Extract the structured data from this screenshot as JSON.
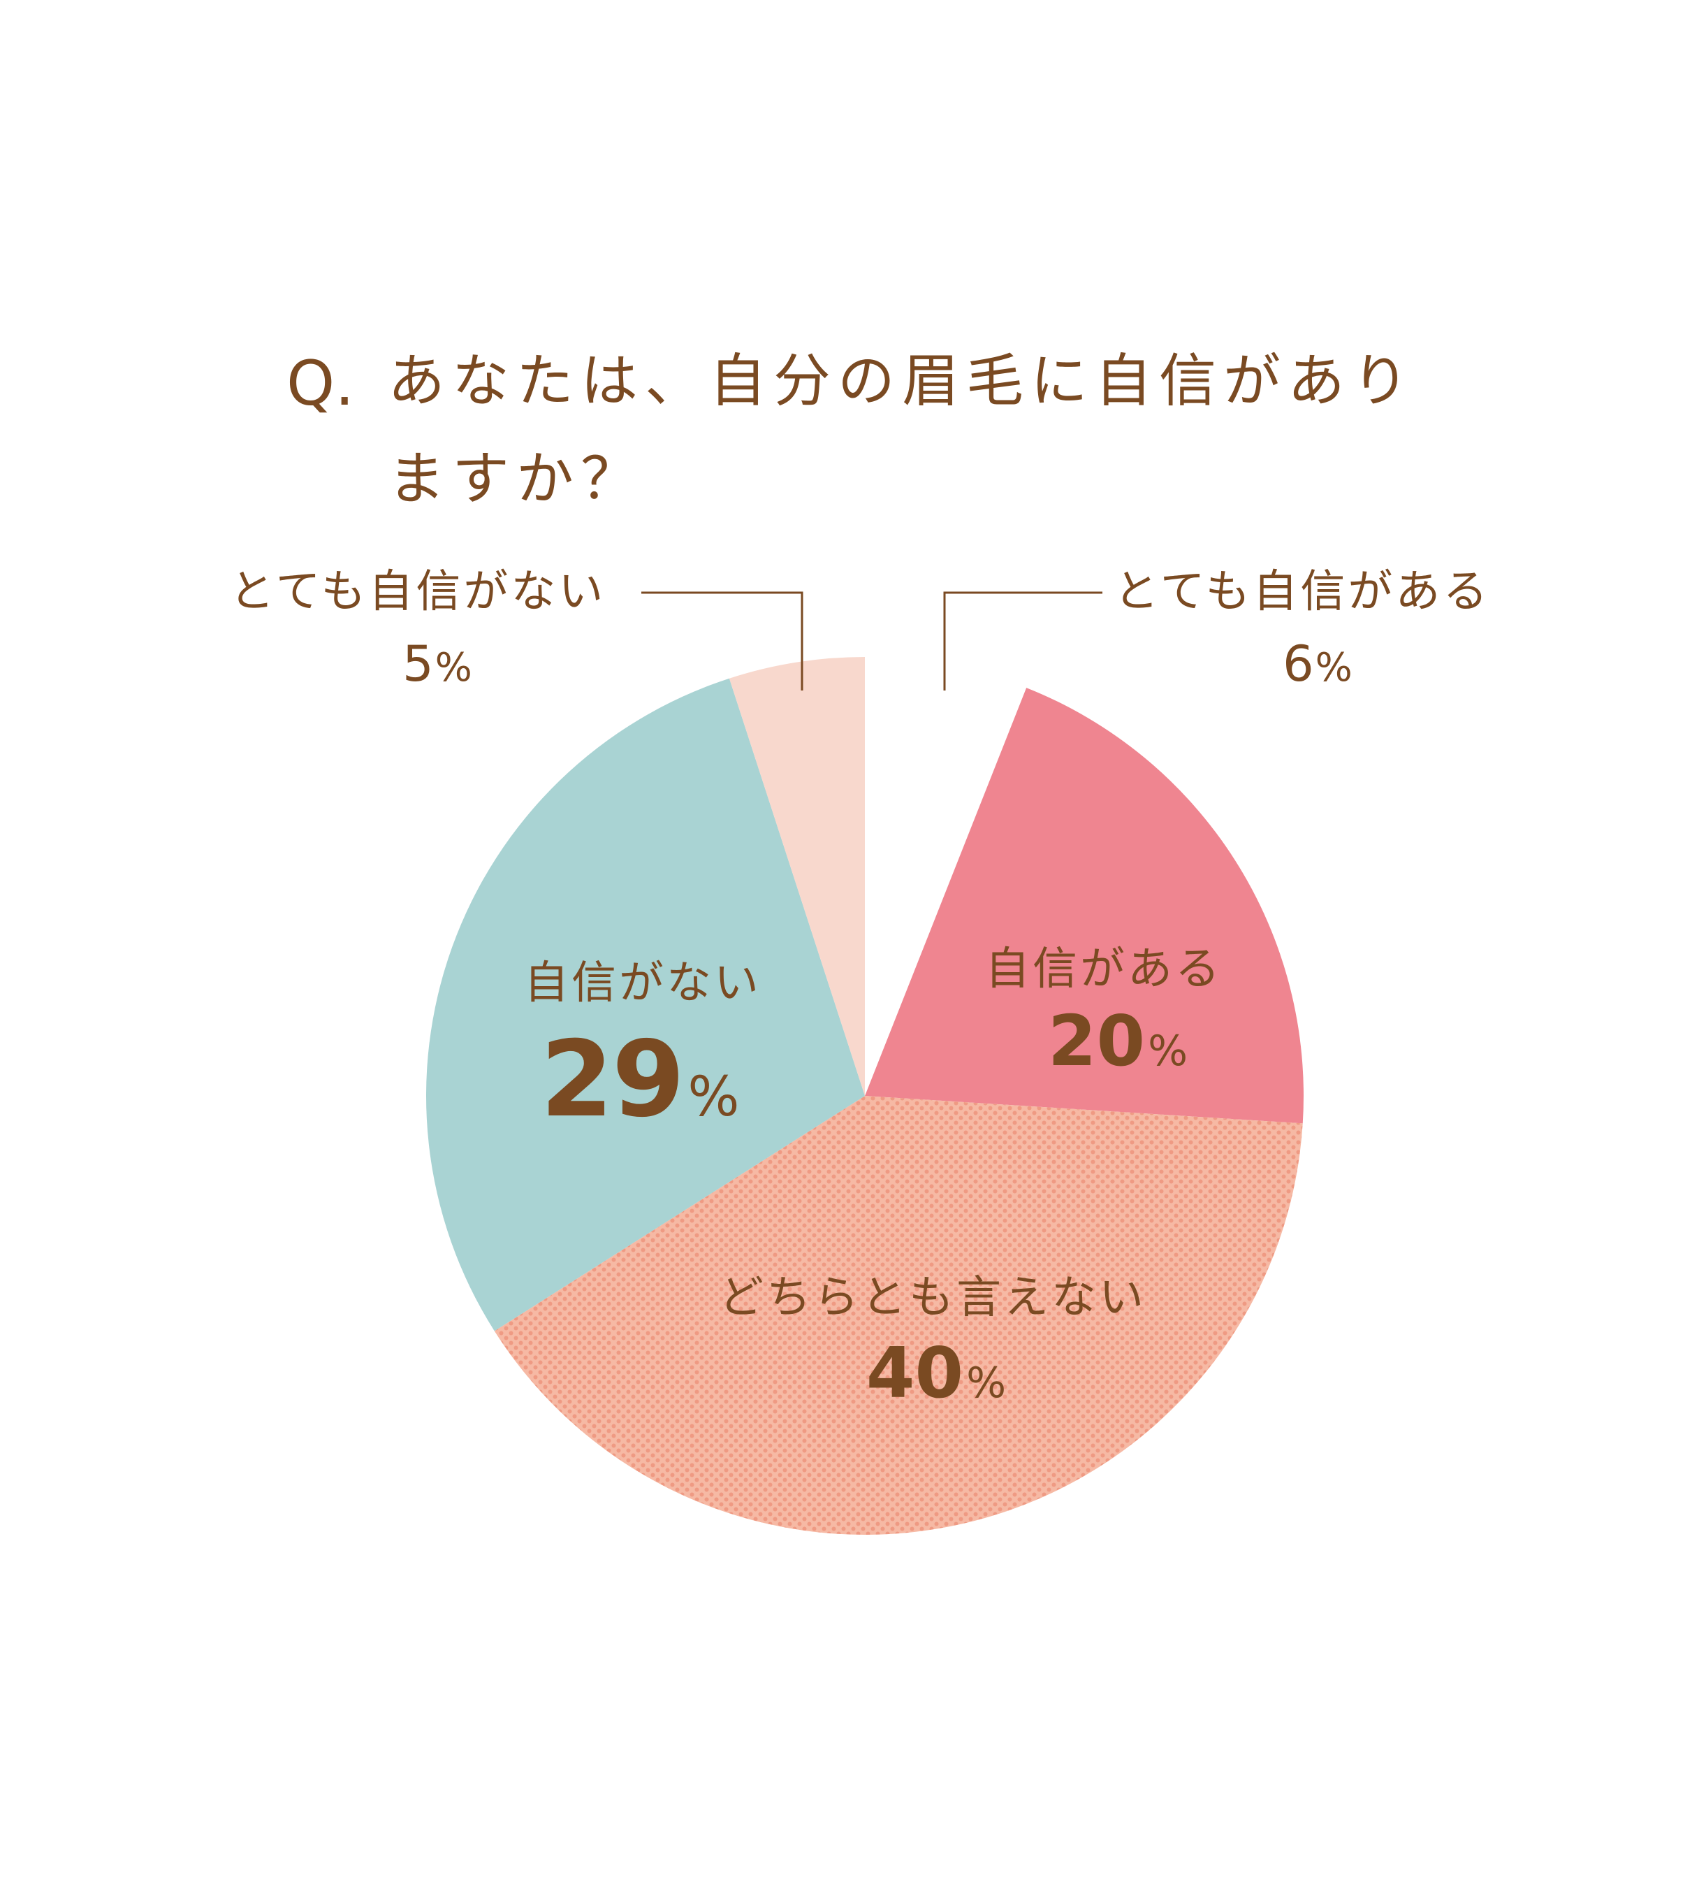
{
  "question": {
    "mark": "Q.",
    "line1": "あなたは、自分の眉毛に自信があり",
    "line2": "ますか？"
  },
  "chart_data": {
    "type": "pie",
    "title": "Q. あなたは、自分の眉毛に自信がありますか？",
    "unit": "%",
    "slices": [
      {
        "name": "とても自信がある",
        "value": 6,
        "display": "6",
        "color": "#ffffff",
        "pattern": "none",
        "exploded": true
      },
      {
        "name": "自信がある",
        "value": 20,
        "display": "20",
        "color": "#ef8590",
        "pattern": "none"
      },
      {
        "name": "どちらとも言えない",
        "value": 40,
        "display": "40",
        "color": "#f6b9a4",
        "pattern": "dots"
      },
      {
        "name": "自信がない",
        "value": 29,
        "display": "29",
        "color": "#a9d3d3",
        "pattern": "none"
      },
      {
        "name": "とても自信がない",
        "value": 5,
        "display": "5",
        "color": "#f8d8cd",
        "pattern": "none"
      }
    ],
    "text_color": "#7a4a22",
    "dot_color": "#ef9a83"
  }
}
